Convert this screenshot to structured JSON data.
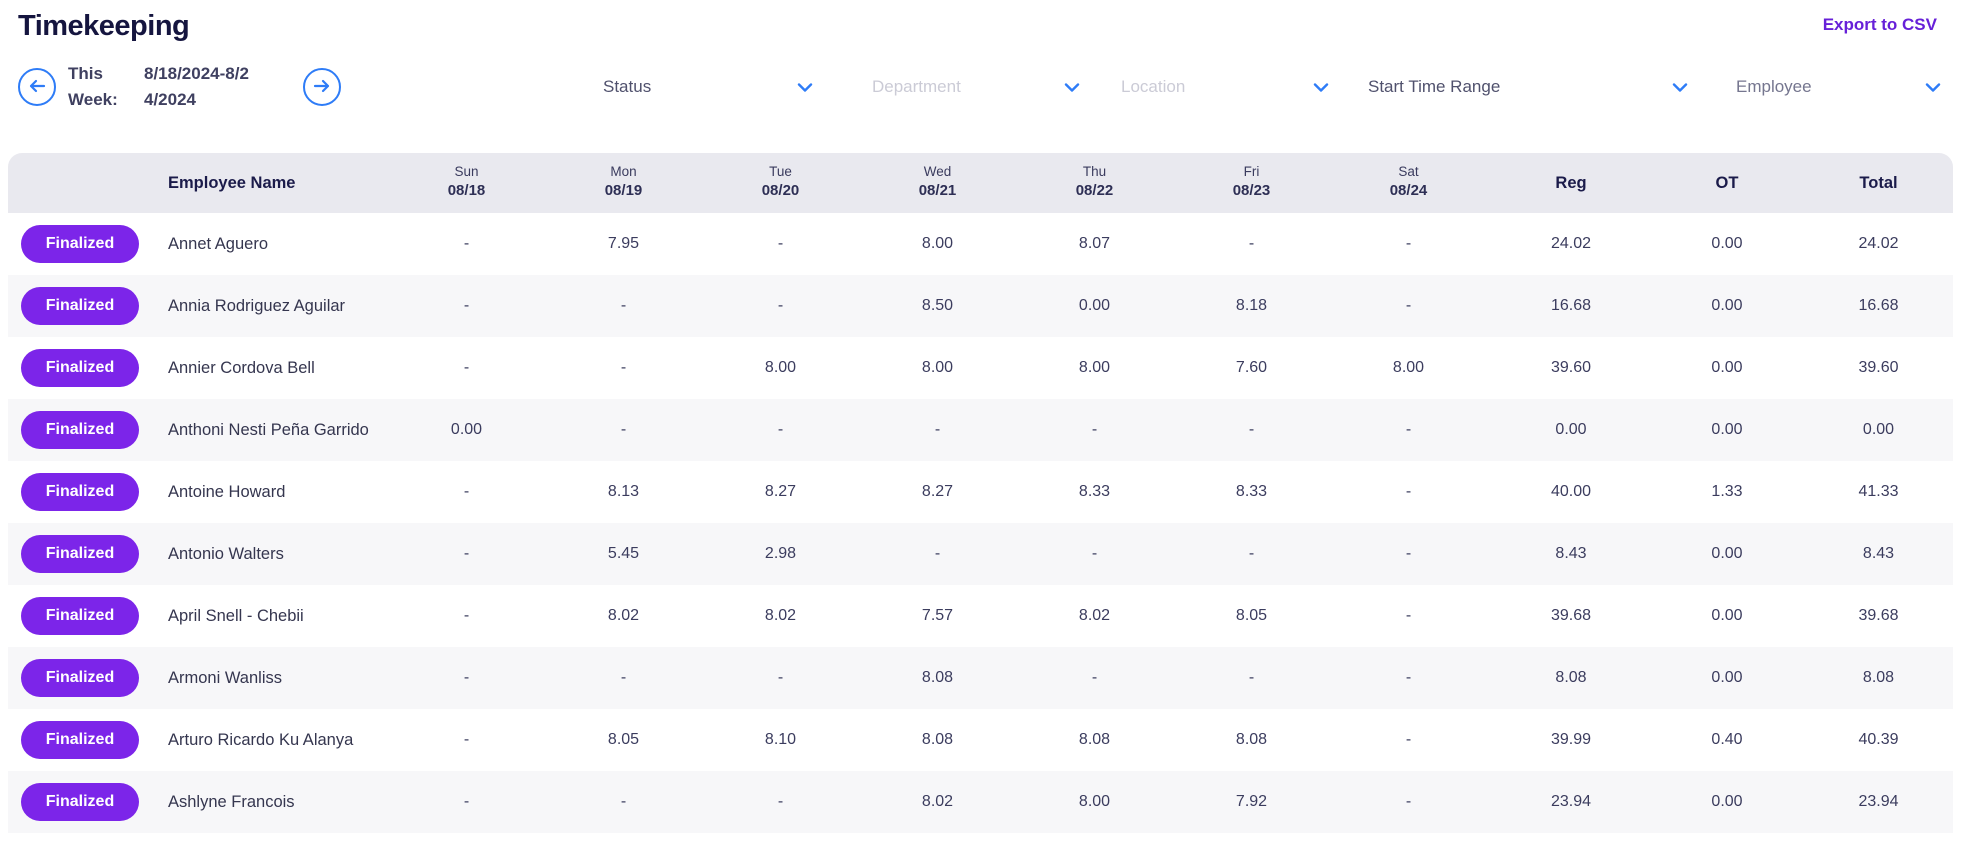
{
  "header": {
    "title": "Timekeeping",
    "export_label": "Export to CSV"
  },
  "week_nav": {
    "label": "This Week:",
    "range": "8/18/2024-8/24/2024",
    "prev_icon": "arrow-left-icon",
    "next_icon": "arrow-right-icon"
  },
  "filters": [
    {
      "label": "Status",
      "tone": "dark"
    },
    {
      "label": "Department",
      "tone": "light"
    },
    {
      "label": "Location",
      "tone": "light"
    },
    {
      "label": "Start Time Range",
      "tone": "dark"
    },
    {
      "label": "Employee",
      "tone": "med"
    }
  ],
  "table": {
    "name_header": "Employee Name",
    "day_columns": [
      {
        "day": "Sun",
        "date": "08/18"
      },
      {
        "day": "Mon",
        "date": "08/19"
      },
      {
        "day": "Tue",
        "date": "08/20"
      },
      {
        "day": "Wed",
        "date": "08/21"
      },
      {
        "day": "Thu",
        "date": "08/22"
      },
      {
        "day": "Fri",
        "date": "08/23"
      },
      {
        "day": "Sat",
        "date": "08/24"
      }
    ],
    "summary_headers": [
      "Reg",
      "OT",
      "Total"
    ],
    "rows": [
      {
        "status": "Finalized",
        "name": "Annet Aguero",
        "days": [
          "-",
          "7.95",
          "-",
          "8.00",
          "8.07",
          "-",
          "-"
        ],
        "reg": "24.02",
        "ot": "0.00",
        "total": "24.02"
      },
      {
        "status": "Finalized",
        "name": "Annia Rodriguez Aguilar",
        "days": [
          "-",
          "-",
          "-",
          "8.50",
          "0.00",
          "8.18",
          "-"
        ],
        "reg": "16.68",
        "ot": "0.00",
        "total": "16.68"
      },
      {
        "status": "Finalized",
        "name": "Annier Cordova Bell",
        "days": [
          "-",
          "-",
          "8.00",
          "8.00",
          "8.00",
          "7.60",
          "8.00"
        ],
        "reg": "39.60",
        "ot": "0.00",
        "total": "39.60"
      },
      {
        "status": "Finalized",
        "name": "Anthoni Nesti Peña Garrido",
        "days": [
          "0.00",
          "-",
          "-",
          "-",
          "-",
          "-",
          "-"
        ],
        "reg": "0.00",
        "ot": "0.00",
        "total": "0.00"
      },
      {
        "status": "Finalized",
        "name": "Antoine Howard",
        "days": [
          "-",
          "8.13",
          "8.27",
          "8.27",
          "8.33",
          "8.33",
          "-"
        ],
        "reg": "40.00",
        "ot": "1.33",
        "total": "41.33"
      },
      {
        "status": "Finalized",
        "name": "Antonio Walters",
        "days": [
          "-",
          "5.45",
          "2.98",
          "-",
          "-",
          "-",
          "-"
        ],
        "reg": "8.43",
        "ot": "0.00",
        "total": "8.43"
      },
      {
        "status": "Finalized",
        "name": "April Snell - Chebii",
        "days": [
          "-",
          "8.02",
          "8.02",
          "7.57",
          "8.02",
          "8.05",
          "-"
        ],
        "reg": "39.68",
        "ot": "0.00",
        "total": "39.68"
      },
      {
        "status": "Finalized",
        "name": "Armoni Wanliss",
        "days": [
          "-",
          "-",
          "-",
          "8.08",
          "-",
          "-",
          "-"
        ],
        "reg": "8.08",
        "ot": "0.00",
        "total": "8.08"
      },
      {
        "status": "Finalized",
        "name": "Arturo Ricardo Ku Alanya",
        "days": [
          "-",
          "8.05",
          "8.10",
          "8.08",
          "8.08",
          "8.08",
          "-"
        ],
        "reg": "39.99",
        "ot": "0.40",
        "total": "40.39"
      },
      {
        "status": "Finalized",
        "name": "Ashlyne Francois",
        "days": [
          "-",
          "-",
          "-",
          "8.02",
          "8.00",
          "7.92",
          "-"
        ],
        "reg": "23.94",
        "ot": "0.00",
        "total": "23.94"
      }
    ]
  },
  "colors": {
    "accent_purple": "#7c25e9",
    "link_purple": "#6720d8",
    "accent_blue": "#2e7cf7",
    "header_bg": "#e9e9ef",
    "alt_row_bg": "#f7f7f9"
  }
}
